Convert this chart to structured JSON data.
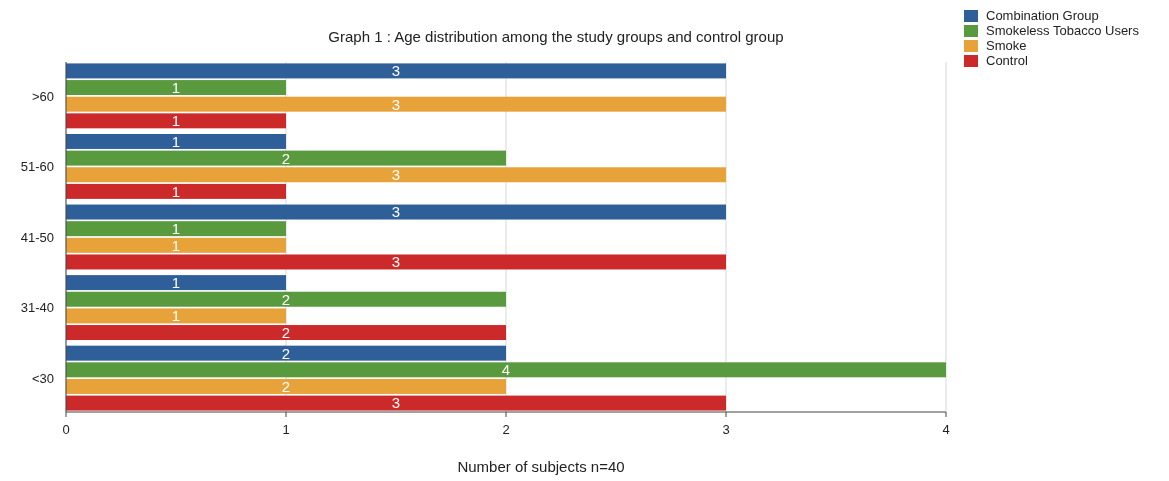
{
  "chart_data": {
    "type": "bar",
    "orientation": "horizontal",
    "title": "Graph 1 : Age distribution among the study groups and control group",
    "xlabel": "Number of subjects n=40",
    "categories": [
      ">60",
      "51-60",
      "41-50",
      "31-40",
      "<30"
    ],
    "series": [
      {
        "name": "Combination Group",
        "color": "#2f5f98",
        "values": [
          3,
          1,
          3,
          1,
          2
        ]
      },
      {
        "name": "Smokeless Tobacco Users",
        "color": "#5a9a3f",
        "values": [
          1,
          2,
          1,
          2,
          4
        ]
      },
      {
        "name": "Smoke",
        "color": "#e8a23a",
        "values": [
          3,
          3,
          1,
          1,
          2
        ]
      },
      {
        "name": "Control",
        "color": "#cc2a2a",
        "values": [
          1,
          1,
          3,
          2,
          3
        ]
      }
    ],
    "xlim": [
      0,
      4
    ],
    "xticks": [
      0,
      1,
      2,
      3,
      4
    ],
    "grid": "x",
    "legend": "top right",
    "data_labels": true
  }
}
